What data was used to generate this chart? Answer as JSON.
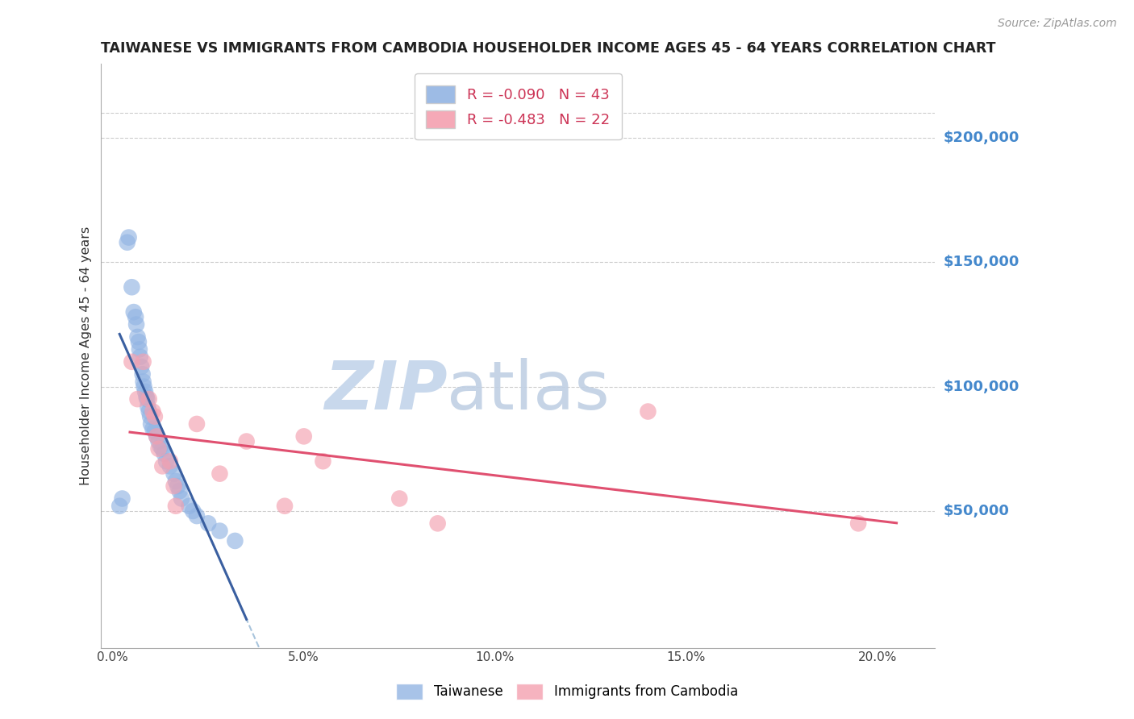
{
  "title": "TAIWANESE VS IMMIGRANTS FROM CAMBODIA HOUSEHOLDER INCOME AGES 45 - 64 YEARS CORRELATION CHART",
  "source": "Source: ZipAtlas.com",
  "ylabel": "Householder Income Ages 45 - 64 years",
  "xlabel_vals": [
    0.0,
    5.0,
    10.0,
    15.0,
    20.0
  ],
  "ytick_labels": [
    "$50,000",
    "$100,000",
    "$150,000",
    "$200,000"
  ],
  "ytick_vals": [
    50000,
    100000,
    150000,
    200000
  ],
  "xlim": [
    -0.3,
    21.5
  ],
  "ylim": [
    -5000,
    230000
  ],
  "taiwanese_R": -0.09,
  "taiwanese_N": 43,
  "cambodia_R": -0.483,
  "cambodia_N": 22,
  "blue_color": "#92B4E3",
  "pink_color": "#F4A0B0",
  "blue_line_color": "#3A5FA0",
  "pink_line_color": "#E05070",
  "dashed_line_color": "#A8C4DC",
  "watermark_zip_color": "#C8D8EC",
  "watermark_atlas_color": "#C0D0E4",
  "right_label_color": "#4488CC",
  "taiwanese_x": [
    0.18,
    0.25,
    0.38,
    0.42,
    0.5,
    0.55,
    0.6,
    0.62,
    0.65,
    0.68,
    0.7,
    0.72,
    0.75,
    0.78,
    0.8,
    0.82,
    0.85,
    0.88,
    0.9,
    0.92,
    0.95,
    0.98,
    1.0,
    1.05,
    1.1,
    1.15,
    1.2,
    1.25,
    1.3,
    1.35,
    1.4,
    1.5,
    1.6,
    1.65,
    1.7,
    1.75,
    1.8,
    2.0,
    2.1,
    2.2,
    2.5,
    2.8,
    3.2
  ],
  "taiwanese_y": [
    52000,
    55000,
    158000,
    160000,
    140000,
    130000,
    128000,
    125000,
    120000,
    118000,
    115000,
    112000,
    108000,
    105000,
    102000,
    100000,
    98000,
    96000,
    95000,
    92000,
    90000,
    88000,
    85000,
    83000,
    82000,
    80000,
    78000,
    76000,
    75000,
    73000,
    70000,
    68000,
    65000,
    62000,
    60000,
    58000,
    55000,
    52000,
    50000,
    48000,
    45000,
    42000,
    38000
  ],
  "cambodia_x": [
    0.5,
    0.65,
    0.8,
    0.95,
    1.05,
    1.1,
    1.15,
    1.2,
    1.3,
    1.5,
    1.6,
    1.65,
    2.2,
    2.8,
    3.5,
    4.5,
    5.0,
    5.5,
    7.5,
    8.5,
    14.0,
    19.5
  ],
  "cambodia_y": [
    110000,
    95000,
    110000,
    95000,
    90000,
    88000,
    80000,
    75000,
    68000,
    70000,
    60000,
    52000,
    85000,
    65000,
    78000,
    52000,
    80000,
    70000,
    55000,
    45000,
    90000,
    45000
  ]
}
